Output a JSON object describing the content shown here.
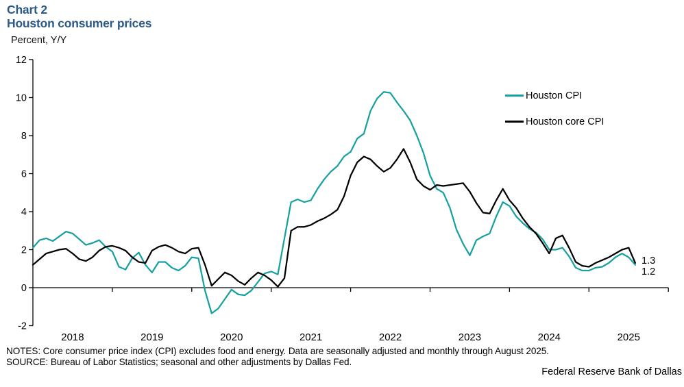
{
  "chart_data": {
    "type": "line",
    "title": "Chart 2",
    "subtitle": "Houston consumer prices",
    "ylabel": "Percent, Y/Y",
    "xlabel": "",
    "ylim": [
      -2,
      12
    ],
    "grid": false,
    "legend_position": "upper-right",
    "y_ticks": [
      12,
      10,
      8,
      6,
      4,
      2,
      0,
      -2
    ],
    "x_year_labels": [
      "2018",
      "2019",
      "2020",
      "2021",
      "2022",
      "2023",
      "2024",
      "2025"
    ],
    "months": [
      "2018-01",
      "2018-02",
      "2018-03",
      "2018-04",
      "2018-05",
      "2018-06",
      "2018-07",
      "2018-08",
      "2018-09",
      "2018-10",
      "2018-11",
      "2018-12",
      "2019-01",
      "2019-02",
      "2019-03",
      "2019-04",
      "2019-05",
      "2019-06",
      "2019-07",
      "2019-08",
      "2019-09",
      "2019-10",
      "2019-11",
      "2019-12",
      "2020-01",
      "2020-02",
      "2020-03",
      "2020-04",
      "2020-05",
      "2020-06",
      "2020-07",
      "2020-08",
      "2020-09",
      "2020-10",
      "2020-11",
      "2020-12",
      "2021-01",
      "2021-02",
      "2021-03",
      "2021-04",
      "2021-05",
      "2021-06",
      "2021-07",
      "2021-08",
      "2021-09",
      "2021-10",
      "2021-11",
      "2021-12",
      "2022-01",
      "2022-02",
      "2022-03",
      "2022-04",
      "2022-05",
      "2022-06",
      "2022-07",
      "2022-08",
      "2022-09",
      "2022-10",
      "2022-11",
      "2022-12",
      "2023-01",
      "2023-02",
      "2023-03",
      "2023-04",
      "2023-05",
      "2023-06",
      "2023-07",
      "2023-08",
      "2023-09",
      "2023-10",
      "2023-11",
      "2023-12",
      "2024-01",
      "2024-02",
      "2024-03",
      "2024-04",
      "2024-05",
      "2024-06",
      "2024-07",
      "2024-08",
      "2024-09",
      "2024-10",
      "2024-11",
      "2024-12",
      "2025-01",
      "2025-02",
      "2025-03",
      "2025-04",
      "2025-05",
      "2025-06",
      "2025-07",
      "2025-08"
    ],
    "series": [
      {
        "name": "Houston CPI",
        "color": "#18a0a0",
        "end_label": "1.2",
        "values": [
          2.1,
          2.5,
          2.6,
          2.45,
          2.7,
          2.95,
          2.85,
          2.55,
          2.25,
          2.35,
          2.5,
          2.15,
          1.9,
          1.1,
          0.95,
          1.55,
          1.85,
          1.2,
          0.8,
          1.35,
          1.35,
          1.05,
          0.9,
          1.15,
          1.6,
          1.55,
          -0.15,
          -1.35,
          -1.1,
          -0.6,
          -0.1,
          -0.35,
          -0.4,
          -0.15,
          0.3,
          0.75,
          0.85,
          0.7,
          2.6,
          4.5,
          4.65,
          4.5,
          4.6,
          5.2,
          5.7,
          6.1,
          6.4,
          6.9,
          7.15,
          7.85,
          8.1,
          9.3,
          9.95,
          10.3,
          10.25,
          9.75,
          9.3,
          8.8,
          8.0,
          7.1,
          5.9,
          5.2,
          5.0,
          4.2,
          3.05,
          2.3,
          1.7,
          2.5,
          2.7,
          2.85,
          3.75,
          4.5,
          4.3,
          3.75,
          3.4,
          3.1,
          2.9,
          2.55,
          2.0,
          2.0,
          2.1,
          1.65,
          1.05,
          0.9,
          0.9,
          1.05,
          1.1,
          1.3,
          1.6,
          1.8,
          1.6,
          1.2
        ]
      },
      {
        "name": "Houston core CPI",
        "color": "#000000",
        "end_label": "1.3",
        "values": [
          1.2,
          1.5,
          1.8,
          1.9,
          2.0,
          2.05,
          1.8,
          1.5,
          1.4,
          1.6,
          1.95,
          2.15,
          2.2,
          2.1,
          1.95,
          1.6,
          1.35,
          1.3,
          1.95,
          2.15,
          2.25,
          2.1,
          1.9,
          1.8,
          2.05,
          2.1,
          1.2,
          0.1,
          0.45,
          0.8,
          0.65,
          0.35,
          0.15,
          0.5,
          0.8,
          0.65,
          0.4,
          0.05,
          0.5,
          3.0,
          3.2,
          3.2,
          3.3,
          3.5,
          3.65,
          3.85,
          4.1,
          4.8,
          5.9,
          6.6,
          6.9,
          6.75,
          6.4,
          6.1,
          6.3,
          6.75,
          7.3,
          6.6,
          5.7,
          5.35,
          5.15,
          5.4,
          5.35,
          5.4,
          5.45,
          5.5,
          5.05,
          4.45,
          3.95,
          3.9,
          4.6,
          5.2,
          4.6,
          4.2,
          3.65,
          3.2,
          2.85,
          2.35,
          1.8,
          2.6,
          2.75,
          2.1,
          1.35,
          1.15,
          1.1,
          1.3,
          1.45,
          1.6,
          1.8,
          2.0,
          2.1,
          1.3
        ]
      }
    ]
  },
  "footer": {
    "notes": "NOTES: Core consumer price index (CPI) excludes food and energy. Data are seasonally adjusted and monthly through August 2025.",
    "source": "SOURCE: Bureau of Labor Statistics; seasonal and other adjustments by Dallas Fed.",
    "attribution": "Federal Reserve Bank of Dallas"
  }
}
